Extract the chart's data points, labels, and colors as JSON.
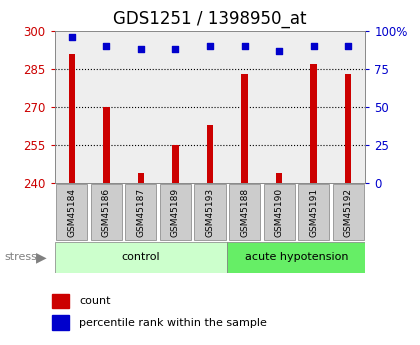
{
  "title": "GDS1251 / 1398950_at",
  "samples": [
    "GSM45184",
    "GSM45186",
    "GSM45187",
    "GSM45189",
    "GSM45193",
    "GSM45188",
    "GSM45190",
    "GSM45191",
    "GSM45192"
  ],
  "count_values": [
    291,
    270,
    244,
    255,
    263,
    283,
    244,
    287,
    283
  ],
  "percentile_values": [
    96,
    90,
    88,
    88,
    90,
    90,
    87,
    90,
    90
  ],
  "control_indices": [
    0,
    1,
    2,
    3,
    4
  ],
  "acute_indices": [
    5,
    6,
    7,
    8
  ],
  "control_color": "#ccffcc",
  "acute_color": "#66ee66",
  "ylim_left": [
    240,
    300
  ],
  "ylim_right": [
    0,
    100
  ],
  "yticks_left": [
    240,
    255,
    270,
    285,
    300
  ],
  "yticks_right": [
    0,
    25,
    50,
    75,
    100
  ],
  "bar_color": "#cc0000",
  "dot_color": "#0000cc",
  "plot_bg_color": "#eeeeee",
  "sample_box_color": "#cccccc",
  "title_fontsize": 12,
  "axis_color_left": "#cc0000",
  "axis_color_right": "#0000cc"
}
